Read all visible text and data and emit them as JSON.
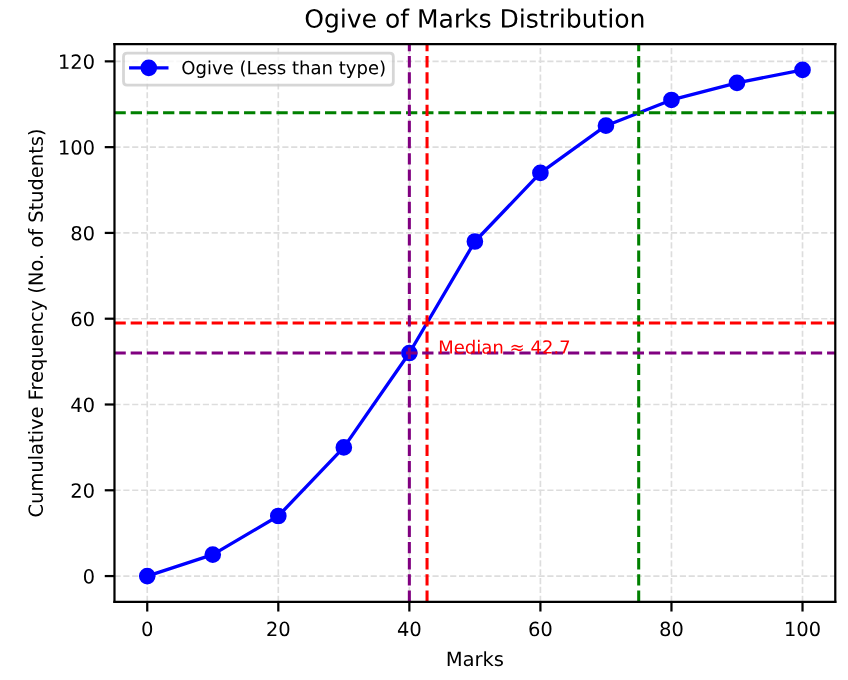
{
  "chart_data": {
    "type": "line",
    "title": "Ogive of Marks Distribution",
    "xlabel": "Marks",
    "ylabel": "Cumulative Frequency (No. of Students)",
    "x": [
      0,
      10,
      20,
      30,
      40,
      50,
      60,
      70,
      80,
      90,
      100
    ],
    "series": [
      {
        "name": "Ogive (Less than type)",
        "color": "#0000ff",
        "values": [
          0,
          5,
          14,
          30,
          52,
          78,
          94,
          105,
          111,
          115,
          118
        ]
      }
    ],
    "xlim": [
      -5,
      105
    ],
    "ylim": [
      -6,
      124
    ],
    "xticks": [
      0,
      20,
      40,
      60,
      80,
      100
    ],
    "yticks": [
      0,
      20,
      40,
      60,
      80,
      100,
      120
    ],
    "ref_lines": [
      {
        "axis": "y",
        "value": 108,
        "color": "#008000",
        "line_style": "dashed"
      },
      {
        "axis": "x",
        "value": 75,
        "color": "#008000",
        "line_style": "dashed"
      },
      {
        "axis": "y",
        "value": 59,
        "color": "#ff0000",
        "line_style": "dashed"
      },
      {
        "axis": "x",
        "value": 42.7,
        "color": "#ff0000",
        "line_style": "dashed"
      },
      {
        "axis": "y",
        "value": 52,
        "color": "#800080",
        "line_style": "dashed"
      },
      {
        "axis": "x",
        "value": 40,
        "color": "#800080",
        "line_style": "dashed"
      }
    ],
    "annotations": [
      {
        "text": "Median ≈ 42.7",
        "x": 42.7,
        "y": 59
      }
    ],
    "grid": true,
    "legend": "top left",
    "marker": "circle",
    "line_style": "solid"
  }
}
